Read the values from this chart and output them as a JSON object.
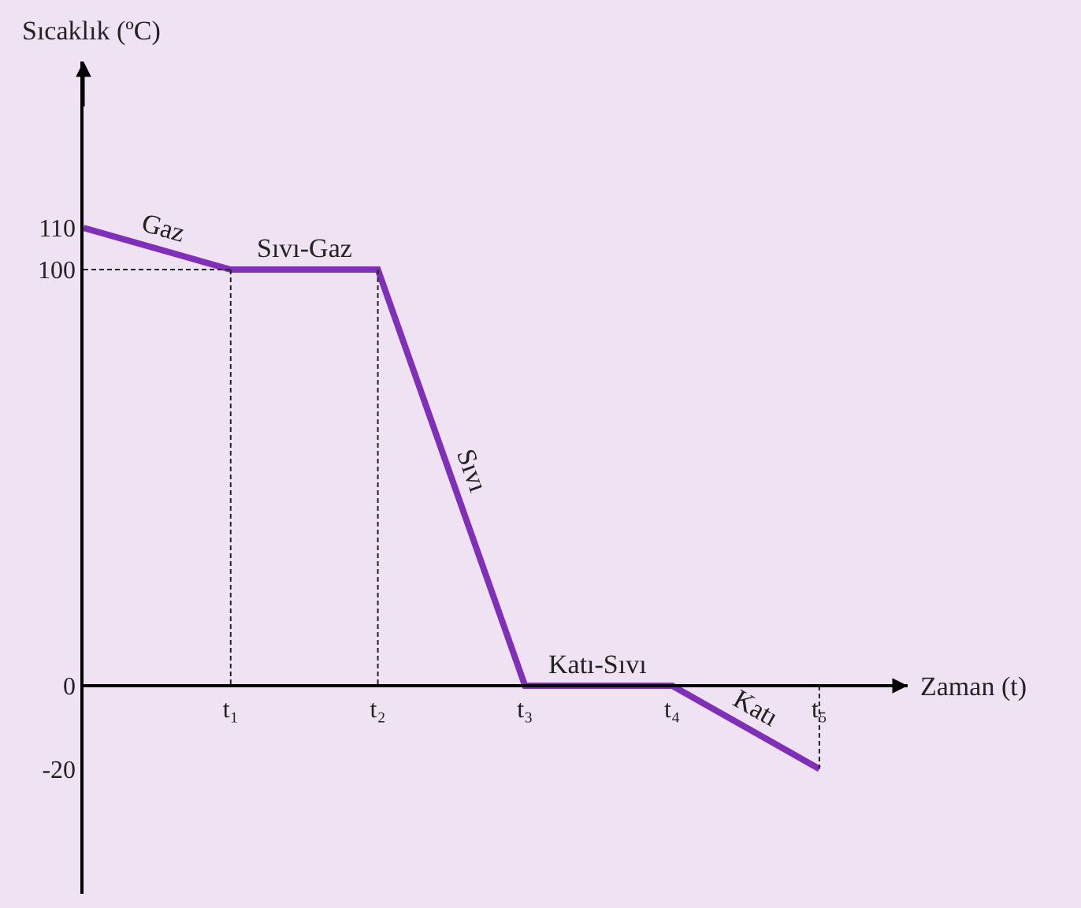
{
  "chart_data": {
    "type": "line",
    "xlabel": "Zaman (t)",
    "ylabel": "Sıcaklık (ºC)",
    "categories": [
      null,
      "t₁",
      "t₂",
      "t₃",
      "t₄",
      "t₅"
    ],
    "ylim": [
      -50,
      150
    ],
    "yticks": [
      -20,
      0,
      100,
      110
    ],
    "grid": false,
    "marker": "none",
    "series": [
      {
        "color": "#7f2fb8",
        "values": [
          110,
          100,
          100,
          0,
          0,
          -20
        ],
        "line_style": "solid"
      },
      {
        "color": "#222222",
        "values": [
          100,
          100,
          null,
          null,
          null,
          null
        ],
        "line_style": "dashed"
      },
      {
        "color": "#222222",
        "x": [
          "t₁",
          "t₁"
        ],
        "values": [
          100,
          0
        ],
        "line_style": "dashed"
      },
      {
        "color": "#222222",
        "x": [
          "t₂",
          "t₂"
        ],
        "values": [
          100,
          0
        ],
        "line_style": "dashed"
      },
      {
        "color": "#222222",
        "x": [
          "t₅",
          "t₅"
        ],
        "values": [
          0,
          -20
        ],
        "line_style": "dashed"
      }
    ],
    "annotations": [
      "Gaz",
      "Sıvı-Gaz",
      "Sıvı",
      "Katı-Sıvı",
      "Katı"
    ]
  }
}
